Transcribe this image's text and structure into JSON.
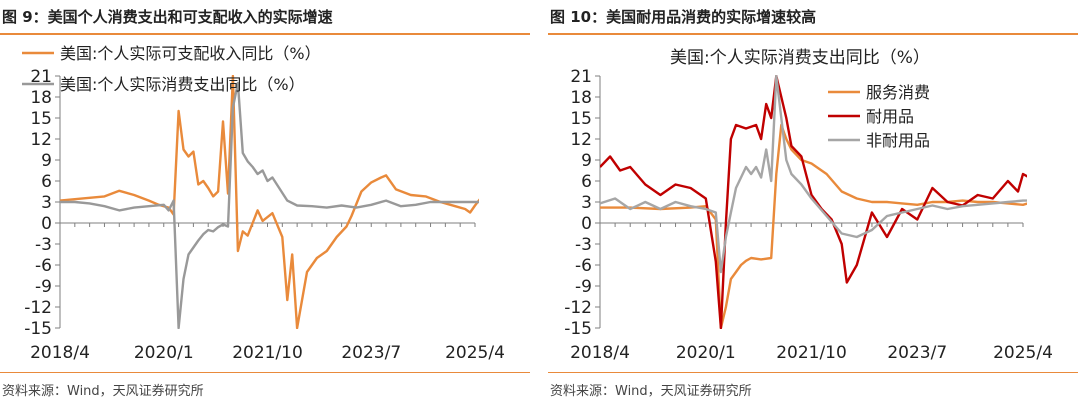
{
  "panels": [
    {
      "title": "图 9：美国个人消费支出和可支配收入的实际增速",
      "source": "资料来源：Wind，天风证券研究所"
    },
    {
      "title": "图 10：美国耐用品消费的实际增速较高",
      "source": "资料来源：Wind，天风证券研究所"
    }
  ],
  "chart_data": [
    {
      "type": "line",
      "title": "",
      "ylim": [
        -15,
        21
      ],
      "yticks": [
        -15,
        -12,
        -9,
        -6,
        -3,
        0,
        3,
        6,
        9,
        12,
        15,
        18,
        21
      ],
      "xticks": [
        "2018/4",
        "2020/1",
        "2021/10",
        "2023/7",
        "2025/4"
      ],
      "x_range": [
        "2018/4",
        "2025/4"
      ],
      "grid": false,
      "legend_position": "top-left",
      "series": [
        {
          "name": "美国:个人实际可支配收入同比（%）",
          "color": "#E98A3B",
          "points": [
            [
              "2018/4",
              3.2
            ],
            [
              "2018/7",
              3.4
            ],
            [
              "2018/10",
              3.6
            ],
            [
              "2019/1",
              3.8
            ],
            [
              "2019/4",
              4.6
            ],
            [
              "2019/7",
              4.0
            ],
            [
              "2019/10",
              3.2
            ],
            [
              "2019/12",
              2.6
            ],
            [
              "2020/2",
              2.2
            ],
            [
              "2020/3",
              1.2
            ],
            [
              "2020/4",
              16.0
            ],
            [
              "2020/5",
              10.5
            ],
            [
              "2020/6",
              9.5
            ],
            [
              "2020/7",
              10.2
            ],
            [
              "2020/8",
              5.5
            ],
            [
              "2020/9",
              6.0
            ],
            [
              "2020/10",
              5.0
            ],
            [
              "2020/11",
              3.8
            ],
            [
              "2020/12",
              4.5
            ],
            [
              "2021/1",
              14.5
            ],
            [
              "2021/2",
              4.2
            ],
            [
              "2021/3",
              21.0
            ],
            [
              "2021/4",
              -4.0
            ],
            [
              "2021/5",
              -1.2
            ],
            [
              "2021/6",
              -1.8
            ],
            [
              "2021/8",
              1.8
            ],
            [
              "2021/9",
              0.3
            ],
            [
              "2021/11",
              1.4
            ],
            [
              "2022/1",
              -2.0
            ],
            [
              "2022/2",
              -11.0
            ],
            [
              "2022/3",
              -4.5
            ],
            [
              "2022/4",
              -15.0
            ],
            [
              "2022/6",
              -7.0
            ],
            [
              "2022/8",
              -5.0
            ],
            [
              "2022/10",
              -4.0
            ],
            [
              "2022/12",
              -2.0
            ],
            [
              "2023/2",
              -0.5
            ],
            [
              "2023/3",
              1.0
            ],
            [
              "2023/5",
              4.5
            ],
            [
              "2023/7",
              5.8
            ],
            [
              "2023/9",
              6.5
            ],
            [
              "2023/10",
              6.8
            ],
            [
              "2023/12",
              4.8
            ],
            [
              "2024/3",
              4.0
            ],
            [
              "2024/6",
              3.8
            ],
            [
              "2024/9",
              3.0
            ],
            [
              "2024/12",
              2.4
            ],
            [
              "2025/2",
              2.0
            ],
            [
              "2025/3",
              1.5
            ],
            [
              "2025/4",
              2.5
            ],
            [
              "2025/5",
              3.4
            ]
          ]
        },
        {
          "name": "美国:个人实际消费支出同比（%）",
          "color": "#999999",
          "points": [
            [
              "2018/4",
              3.0
            ],
            [
              "2018/7",
              3.0
            ],
            [
              "2018/10",
              2.8
            ],
            [
              "2019/1",
              2.4
            ],
            [
              "2019/4",
              1.8
            ],
            [
              "2019/7",
              2.2
            ],
            [
              "2019/10",
              2.4
            ],
            [
              "2020/1",
              2.6
            ],
            [
              "2020/2",
              1.8
            ],
            [
              "2020/3",
              3.2
            ],
            [
              "2020/4",
              -15.0
            ],
            [
              "2020/5",
              -8.0
            ],
            [
              "2020/6",
              -4.5
            ],
            [
              "2020/7",
              -3.5
            ],
            [
              "2020/8",
              -2.5
            ],
            [
              "2020/9",
              -1.6
            ],
            [
              "2020/10",
              -1.0
            ],
            [
              "2020/11",
              -1.2
            ],
            [
              "2020/12",
              -0.6
            ],
            [
              "2021/1",
              -0.2
            ],
            [
              "2021/2",
              -0.5
            ],
            [
              "2021/3",
              16.5
            ],
            [
              "2021/4",
              20.0
            ],
            [
              "2021/5",
              10.0
            ],
            [
              "2021/6",
              8.8
            ],
            [
              "2021/7",
              8.0
            ],
            [
              "2021/8",
              7.0
            ],
            [
              "2021/9",
              7.5
            ],
            [
              "2021/10",
              6.0
            ],
            [
              "2021/11",
              6.5
            ],
            [
              "2022/2",
              3.2
            ],
            [
              "2022/4",
              2.5
            ],
            [
              "2022/7",
              2.4
            ],
            [
              "2022/10",
              2.2
            ],
            [
              "2023/1",
              2.5
            ],
            [
              "2023/4",
              2.2
            ],
            [
              "2023/7",
              2.6
            ],
            [
              "2023/10",
              3.2
            ],
            [
              "2024/1",
              2.4
            ],
            [
              "2024/4",
              2.6
            ],
            [
              "2024/7",
              3.0
            ],
            [
              "2024/10",
              3.0
            ],
            [
              "2025/1",
              3.0
            ],
            [
              "2025/4",
              3.0
            ],
            [
              "2025/5",
              3.0
            ]
          ]
        }
      ]
    },
    {
      "type": "line",
      "title": "美国:个人实际消费支出同比（%）",
      "ylim": [
        -15,
        21
      ],
      "yticks": [
        -15,
        -12,
        -9,
        -6,
        -3,
        0,
        3,
        6,
        9,
        12,
        15,
        18,
        21
      ],
      "xticks": [
        "2018/4",
        "2020/1",
        "2021/10",
        "2023/7",
        "2025/4"
      ],
      "x_range": [
        "2018/4",
        "2025/4"
      ],
      "grid": false,
      "legend_position": "top-right",
      "series": [
        {
          "name": "服务消费",
          "color": "#E98A3B",
          "points": [
            [
              "2018/4",
              2.2
            ],
            [
              "2018/10",
              2.2
            ],
            [
              "2019/4",
              2.0
            ],
            [
              "2019/10",
              2.2
            ],
            [
              "2020/1",
              2.4
            ],
            [
              "2020/3",
              0.5
            ],
            [
              "2020/4",
              -15.0
            ],
            [
              "2020/5",
              -12.0
            ],
            [
              "2020/6",
              -8.0
            ],
            [
              "2020/7",
              -7.0
            ],
            [
              "2020/8",
              -6.0
            ],
            [
              "2020/9",
              -5.4
            ],
            [
              "2020/10",
              -5.0
            ],
            [
              "2020/12",
              -5.2
            ],
            [
              "2021/2",
              -5.0
            ],
            [
              "2021/3",
              7.0
            ],
            [
              "2021/4",
              14.0
            ],
            [
              "2021/5",
              12.0
            ],
            [
              "2021/6",
              10.5
            ],
            [
              "2021/8",
              9.0
            ],
            [
              "2021/10",
              8.5
            ],
            [
              "2022/1",
              7.0
            ],
            [
              "2022/4",
              4.5
            ],
            [
              "2022/7",
              3.5
            ],
            [
              "2022/10",
              3.0
            ],
            [
              "2023/1",
              3.0
            ],
            [
              "2023/4",
              2.8
            ],
            [
              "2023/7",
              2.6
            ],
            [
              "2023/10",
              3.0
            ],
            [
              "2024/1",
              3.0
            ],
            [
              "2024/4",
              3.2
            ],
            [
              "2024/7",
              3.0
            ],
            [
              "2024/10",
              3.0
            ],
            [
              "2025/1",
              2.8
            ],
            [
              "2025/4",
              2.6
            ],
            [
              "2025/5",
              2.8
            ]
          ]
        },
        {
          "name": "耐用品",
          "color": "#C00000",
          "points": [
            [
              "2018/4",
              8.0
            ],
            [
              "2018/6",
              9.5
            ],
            [
              "2018/8",
              7.5
            ],
            [
              "2018/10",
              8.0
            ],
            [
              "2019/1",
              5.5
            ],
            [
              "2019/4",
              4.0
            ],
            [
              "2019/7",
              5.5
            ],
            [
              "2019/10",
              5.0
            ],
            [
              "2020/1",
              3.5
            ],
            [
              "2020/3",
              -5.5
            ],
            [
              "2020/4",
              -15.0
            ],
            [
              "2020/5",
              0.0
            ],
            [
              "2020/6",
              12.0
            ],
            [
              "2020/7",
              14.0
            ],
            [
              "2020/9",
              13.5
            ],
            [
              "2020/11",
              14.0
            ],
            [
              "2020/12",
              12.0
            ],
            [
              "2021/1",
              17.0
            ],
            [
              "2021/2",
              15.0
            ],
            [
              "2021/3",
              21.0
            ],
            [
              "2021/5",
              15.0
            ],
            [
              "2021/6",
              11.0
            ],
            [
              "2021/8",
              9.5
            ],
            [
              "2021/10",
              4.0
            ],
            [
              "2021/12",
              2.0
            ],
            [
              "2022/2",
              0.5
            ],
            [
              "2022/4",
              -3.0
            ],
            [
              "2022/5",
              -8.5
            ],
            [
              "2022/7",
              -6.0
            ],
            [
              "2022/10",
              1.5
            ],
            [
              "2023/1",
              -2.0
            ],
            [
              "2023/4",
              2.0
            ],
            [
              "2023/7",
              0.5
            ],
            [
              "2023/10",
              5.0
            ],
            [
              "2024/1",
              3.0
            ],
            [
              "2024/4",
              2.5
            ],
            [
              "2024/7",
              4.0
            ],
            [
              "2024/10",
              3.5
            ],
            [
              "2025/1",
              6.0
            ],
            [
              "2025/3",
              4.5
            ],
            [
              "2025/4",
              7.0
            ],
            [
              "2025/5",
              6.6
            ]
          ]
        },
        {
          "name": "非耐用品",
          "color": "#A6A6A6",
          "points": [
            [
              "2018/4",
              2.8
            ],
            [
              "2018/7",
              3.5
            ],
            [
              "2018/10",
              2.0
            ],
            [
              "2019/1",
              3.0
            ],
            [
              "2019/4",
              2.0
            ],
            [
              "2019/7",
              3.0
            ],
            [
              "2019/10",
              2.4
            ],
            [
              "2020/1",
              2.0
            ],
            [
              "2020/3",
              1.5
            ],
            [
              "2020/4",
              -7.0
            ],
            [
              "2020/5",
              -2.0
            ],
            [
              "2020/6",
              1.5
            ],
            [
              "2020/7",
              5.0
            ],
            [
              "2020/8",
              6.5
            ],
            [
              "2020/9",
              8.0
            ],
            [
              "2020/10",
              7.0
            ],
            [
              "2020/11",
              8.0
            ],
            [
              "2020/12",
              6.5
            ],
            [
              "2021/1",
              10.5
            ],
            [
              "2021/2",
              6.0
            ],
            [
              "2021/3",
              21.0
            ],
            [
              "2021/4",
              15.0
            ],
            [
              "2021/5",
              9.0
            ],
            [
              "2021/6",
              7.0
            ],
            [
              "2021/8",
              5.5
            ],
            [
              "2021/10",
              3.5
            ],
            [
              "2022/1",
              1.0
            ],
            [
              "2022/4",
              -1.5
            ],
            [
              "2022/7",
              -2.0
            ],
            [
              "2022/10",
              -1.0
            ],
            [
              "2023/1",
              1.0
            ],
            [
              "2023/4",
              1.5
            ],
            [
              "2023/7",
              2.0
            ],
            [
              "2023/10",
              2.5
            ],
            [
              "2024/1",
              2.0
            ],
            [
              "2024/4",
              2.4
            ],
            [
              "2024/7",
              2.6
            ],
            [
              "2024/10",
              2.8
            ],
            [
              "2025/1",
              3.0
            ],
            [
              "2025/4",
              3.2
            ],
            [
              "2025/5",
              3.2
            ]
          ]
        }
      ]
    }
  ]
}
